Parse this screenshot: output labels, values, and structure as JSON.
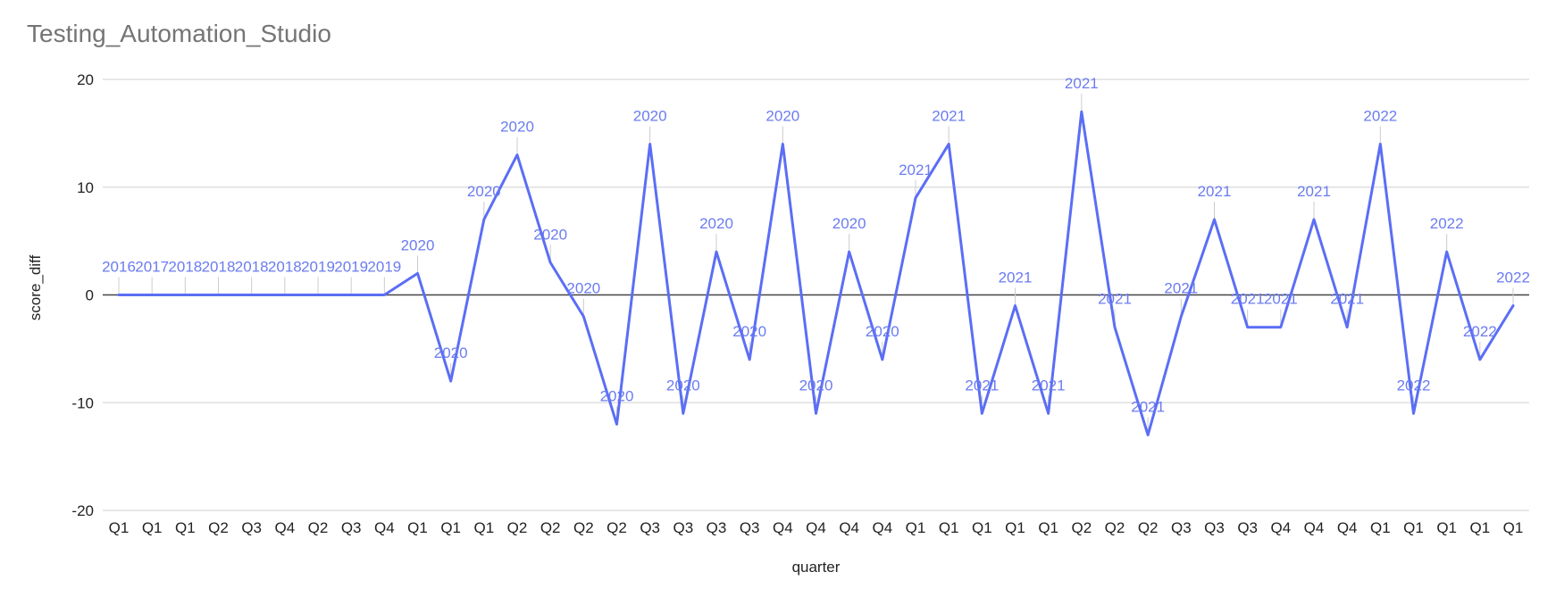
{
  "chart_data": {
    "type": "line",
    "title": "Testing_Automation_Studio",
    "xlabel": "quarter",
    "ylabel": "score_diff",
    "ylim": [
      -20,
      20
    ],
    "yticks": [
      20,
      10,
      0,
      -10,
      -20
    ],
    "grid": true,
    "legend": "none",
    "categories": [
      "Q1",
      "Q1",
      "Q1",
      "Q2",
      "Q3",
      "Q4",
      "Q2",
      "Q3",
      "Q4",
      "Q1",
      "Q1",
      "Q1",
      "Q2",
      "Q2",
      "Q2",
      "Q2",
      "Q3",
      "Q3",
      "Q3",
      "Q3",
      "Q4",
      "Q4",
      "Q4",
      "Q4",
      "Q1",
      "Q1",
      "Q1",
      "Q1",
      "Q1",
      "Q2",
      "Q2",
      "Q2",
      "Q3",
      "Q3",
      "Q3",
      "Q4",
      "Q4",
      "Q4",
      "Q1",
      "Q1",
      "Q1",
      "Q1",
      "Q1"
    ],
    "series": [
      {
        "values": [
          0,
          0,
          0,
          0,
          0,
          0,
          0,
          0,
          0,
          2,
          -8,
          7,
          13,
          3,
          -2,
          -12,
          14,
          -11,
          4,
          -6,
          14,
          -11,
          4,
          -6,
          9,
          14,
          -11,
          -1,
          -11,
          17,
          -3,
          -13,
          -2,
          7,
          -3,
          -3,
          7,
          -3,
          14,
          -11,
          4,
          -6,
          -1
        ],
        "labels": [
          "2016",
          "2017",
          "2018",
          "2018",
          "2018",
          "2018",
          "2019",
          "2019",
          "2019",
          "2020",
          "2020",
          "2020",
          "2020",
          "2020",
          "2020",
          "2020",
          "2020",
          "2020",
          "2020",
          "2020",
          "2020",
          "2020",
          "2020",
          "2020",
          "2021",
          "2021",
          "2021",
          "2021",
          "2021",
          "2021",
          "2021",
          "2021",
          "2021",
          "2021",
          "2021",
          "2021",
          "2021",
          "2021",
          "2022",
          "2022",
          "2022",
          "2022",
          "2022"
        ],
        "color": "#5b6ef5"
      }
    ],
    "colors": {
      "line": "#5b6ef5",
      "label": "#6b7cf0",
      "grid": "#d9d9d9",
      "zero_line": "#444444",
      "axis_text": "#222222",
      "title": "#757575"
    }
  }
}
